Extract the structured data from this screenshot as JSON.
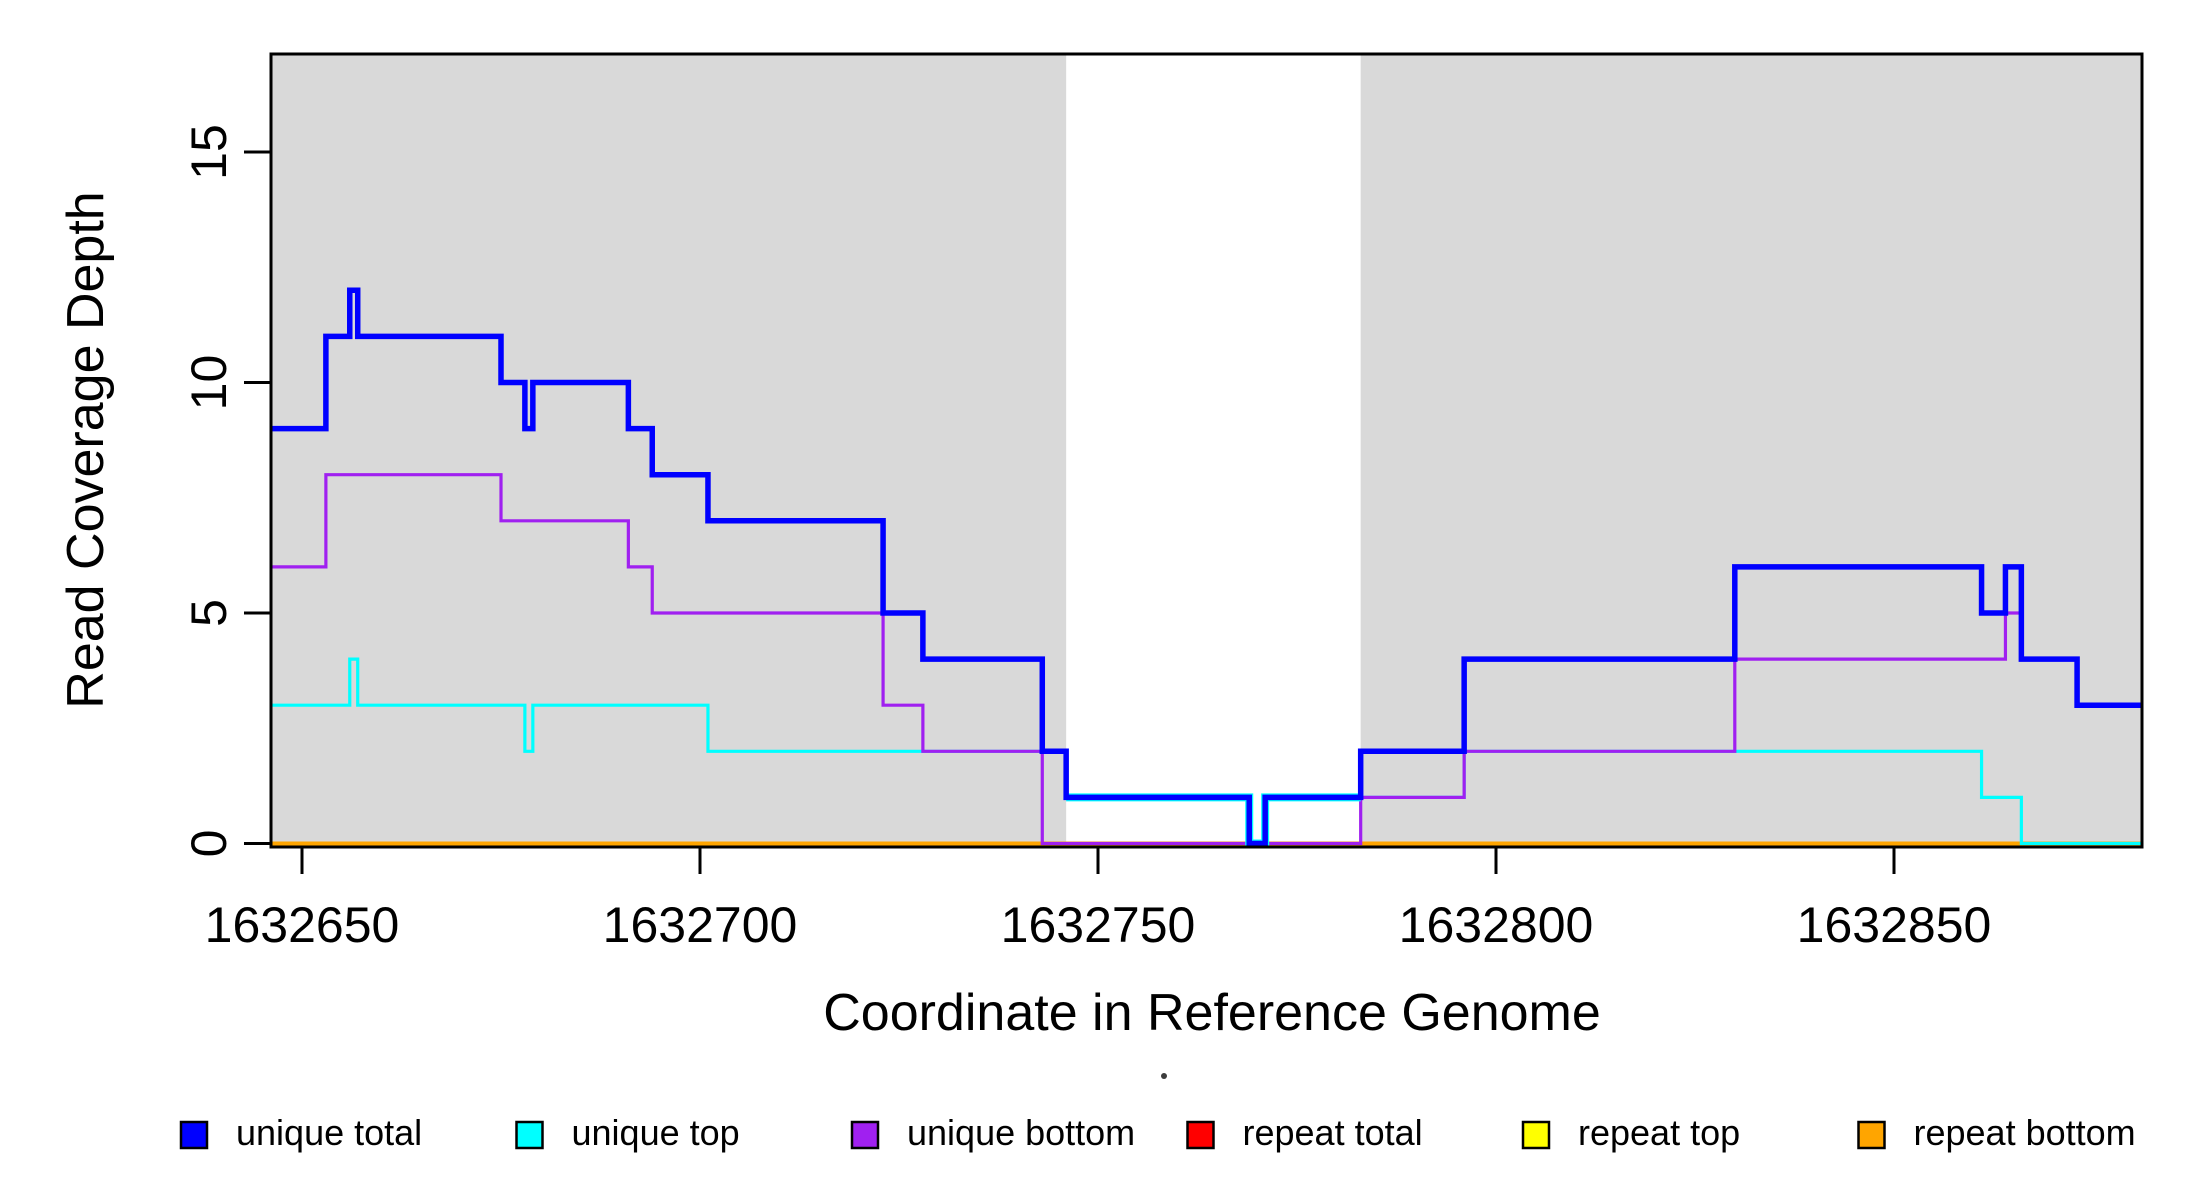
{
  "figure": {
    "background": "#FFFFFF"
  },
  "chart_data": {
    "type": "line",
    "subtype": "step",
    "title": "",
    "xlabel": "Coordinate in Reference Genome",
    "ylabel": "Read Coverage Depth",
    "xlim": [
      1632646,
      1632881
    ],
    "ylim": [
      0,
      17.2
    ],
    "grid": false,
    "legend_position": "bottom",
    "x_ticks": [
      {
        "value": 1632650,
        "label": "1632650"
      },
      {
        "value": 1632700,
        "label": "1632700"
      },
      {
        "value": 1632750,
        "label": "1632750"
      },
      {
        "value": 1632800,
        "label": "1632800"
      },
      {
        "value": 1632850,
        "label": "1632850"
      }
    ],
    "y_ticks": [
      {
        "value": 0,
        "label": "0"
      },
      {
        "value": 5,
        "label": "5"
      },
      {
        "value": 10,
        "label": "10"
      },
      {
        "value": 15,
        "label": "15"
      }
    ],
    "shaded_regions": [
      {
        "name": "left-gray-region",
        "x0": 1632646,
        "x1": 1632746,
        "color": "#D9D9D9"
      },
      {
        "name": "right-gray-region",
        "x0": 1632783,
        "x1": 1632881,
        "color": "#D9D9D9"
      }
    ],
    "white_gap": {
      "x0": 1632746,
      "x1": 1632783
    },
    "draw_order": [
      "repeat total",
      "repeat top",
      "repeat bottom",
      "unique top",
      "unique bottom",
      "unique total"
    ],
    "series": [
      {
        "name": "unique total",
        "color": "#0000FF",
        "line_width": 5.5,
        "steps": [
          [
            1632646,
            9
          ],
          [
            1632653,
            11
          ],
          [
            1632656,
            12
          ],
          [
            1632657,
            11
          ],
          [
            1632675,
            10
          ],
          [
            1632678,
            9
          ],
          [
            1632679,
            10
          ],
          [
            1632691,
            9
          ],
          [
            1632694,
            8
          ],
          [
            1632701,
            7
          ],
          [
            1632723,
            5
          ],
          [
            1632728,
            4
          ],
          [
            1632743,
            2
          ],
          [
            1632746,
            1
          ],
          [
            1632769,
            0
          ],
          [
            1632771,
            1
          ],
          [
            1632783,
            2
          ],
          [
            1632796,
            4
          ],
          [
            1632830,
            6
          ],
          [
            1632861,
            5
          ],
          [
            1632864,
            6
          ],
          [
            1632866,
            4
          ],
          [
            1632873,
            3
          ]
        ]
      },
      {
        "name": "unique top",
        "color": "#00FFFF",
        "line_width": 3.2,
        "steps": [
          [
            1632646,
            3
          ],
          [
            1632656,
            4
          ],
          [
            1632657,
            3
          ],
          [
            1632678,
            2
          ],
          [
            1632679,
            3
          ],
          [
            1632701,
            2
          ],
          [
            1632746,
            1
          ],
          [
            1632769,
            0
          ],
          [
            1632771,
            1
          ],
          [
            1632796,
            2
          ],
          [
            1632861,
            1
          ],
          [
            1632866,
            0
          ]
        ]
      },
      {
        "name": "unique bottom",
        "color": "#A020F0",
        "line_width": 3.2,
        "steps": [
          [
            1632646,
            6
          ],
          [
            1632653,
            8
          ],
          [
            1632675,
            7
          ],
          [
            1632691,
            6
          ],
          [
            1632694,
            5
          ],
          [
            1632723,
            3
          ],
          [
            1632728,
            2
          ],
          [
            1632743,
            0
          ],
          [
            1632783,
            1
          ],
          [
            1632796,
            2
          ],
          [
            1632830,
            4
          ],
          [
            1632864,
            5
          ],
          [
            1632866,
            4
          ],
          [
            1632873,
            3
          ]
        ]
      },
      {
        "name": "repeat total",
        "color": "#FF0000",
        "line_width": 3,
        "steps": [
          [
            1632646,
            0
          ]
        ]
      },
      {
        "name": "repeat top",
        "color": "#FFFF00",
        "line_width": 3,
        "steps": [
          [
            1632646,
            0
          ]
        ]
      },
      {
        "name": "repeat bottom",
        "color": "#FFA500",
        "line_width": 4,
        "steps": [
          [
            1632646,
            0
          ]
        ]
      }
    ]
  },
  "legend": {
    "items": [
      {
        "label": "unique total",
        "color": "#0000FF"
      },
      {
        "label": "unique top",
        "color": "#00FFFF"
      },
      {
        "label": "unique bottom",
        "color": "#A020F0"
      },
      {
        "label": "repeat total",
        "color": "#FF0000"
      },
      {
        "label": "repeat top",
        "color": "#FFFF00"
      },
      {
        "label": "repeat bottom",
        "color": "#FFA500"
      }
    ]
  }
}
